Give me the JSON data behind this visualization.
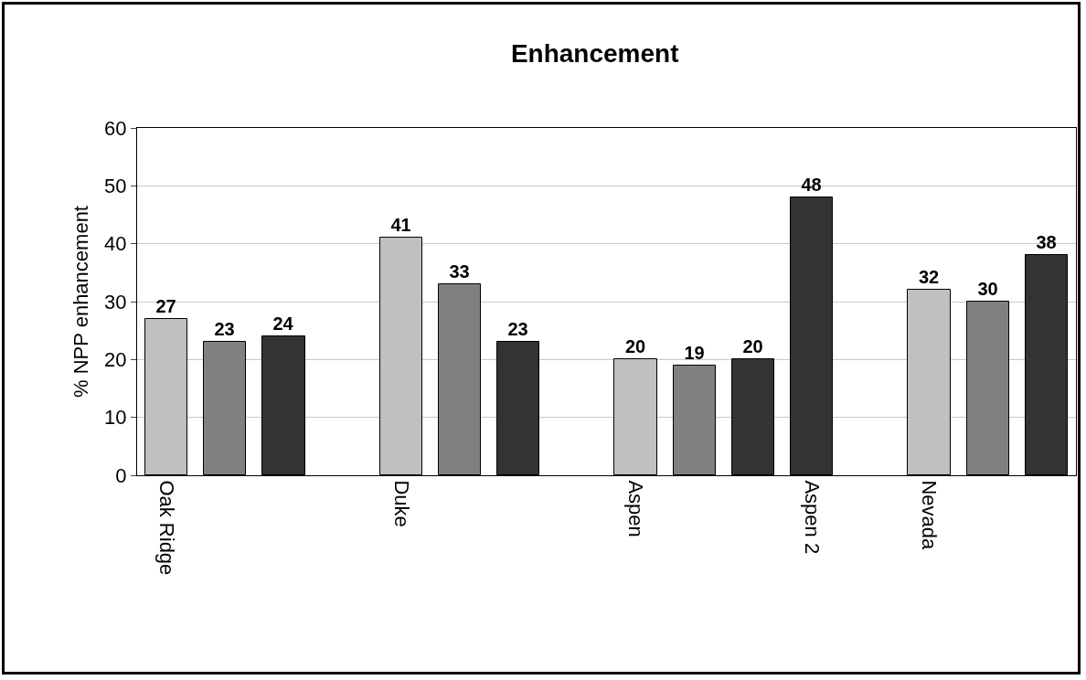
{
  "chart_data": {
    "type": "bar",
    "title": "Enhancement",
    "ylabel": "% NPP enhancement",
    "categories": [
      "Oak Ridge",
      null,
      null,
      null,
      "Duke",
      null,
      null,
      null,
      "Aspen",
      null,
      null,
      "Aspen 2",
      null,
      "Nevada",
      null,
      null
    ],
    "values": [
      27,
      23,
      24,
      null,
      41,
      33,
      23,
      null,
      20,
      19,
      20,
      48,
      null,
      32,
      30,
      38
    ],
    "colors": [
      "#c0c0c0",
      "#808080",
      "#333333",
      "#c0c0c0",
      "#c0c0c0",
      "#808080",
      "#333333",
      "#c0c0c0",
      "#c0c0c0",
      "#808080",
      "#333333",
      "#333333",
      "#c0c0c0",
      "#c0c0c0",
      "#808080",
      "#333333"
    ],
    "ylim": [
      0,
      60
    ],
    "yticks": [
      0,
      10,
      20,
      30,
      40,
      50,
      60
    ],
    "grid": "y",
    "data_labels": true
  }
}
